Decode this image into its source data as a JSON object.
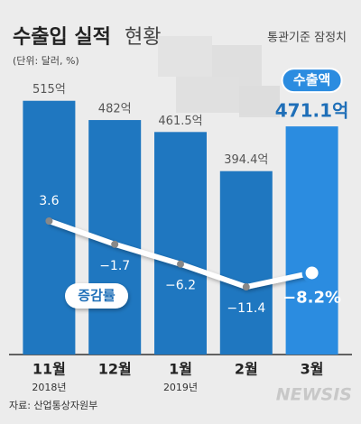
{
  "chart_data": {
    "type": "bar_line",
    "title": "수출입 실적",
    "title_suffix": "현황",
    "subtitle": "(단위: 달러, %)",
    "note": "통관기준 잠정치",
    "source": "자료: 산업통상자원부",
    "watermark": "NEWSIS",
    "categories": [
      "11월",
      "12월",
      "1월",
      "2월",
      "3월"
    ],
    "x_sublabels": [
      "2018년",
      null,
      "2019년",
      null,
      null
    ],
    "ylim": [
      80,
      595
    ],
    "y2lim": [
      -26.8,
      41.6
    ],
    "series": [
      {
        "name": "수출액",
        "type": "bar",
        "colors": [
          "#1f77c0",
          "#1f77c0",
          "#1f77c0",
          "#1f77c0",
          "#2b8ce0"
        ],
        "values": [
          515,
          482,
          461.5,
          394.4,
          471.1
        ],
        "value_labels": [
          "515억",
          "482억",
          "461.5억",
          "394.4억",
          "471.1억"
        ]
      },
      {
        "name": "증감률",
        "type": "line",
        "axis": "y2",
        "color": "#ffffff",
        "values": [
          3.6,
          -1.7,
          -6.2,
          -11.4,
          -8.2
        ],
        "value_labels": [
          "3.6",
          "−1.7",
          "−6.2",
          "−11.4",
          "−8.2%"
        ]
      }
    ]
  }
}
